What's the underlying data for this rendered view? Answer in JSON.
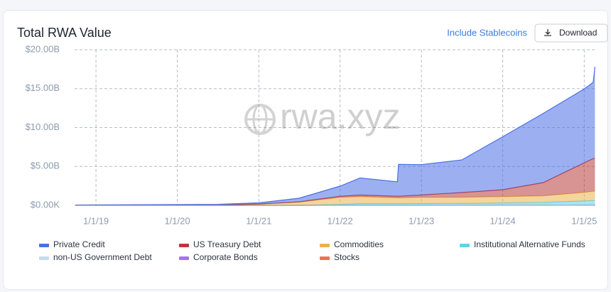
{
  "chart_data": {
    "type": "stacked-area",
    "title": "Total RWA Value",
    "watermark": "rwa.xyz",
    "x": [
      "2018-10-01",
      "2019-07-01",
      "2020-07-01",
      "2021-01-01",
      "2021-07-01",
      "2022-01-01",
      "2022-04-01",
      "2022-09-15",
      "2022-09-20",
      "2023-01-01",
      "2023-07-01",
      "2024-01-01",
      "2024-07-01",
      "2025-01-01",
      "2025-02-10",
      "2025-02-18"
    ],
    "xlim": [
      "2018-09-27",
      "2025-02-20"
    ],
    "xticks": [
      {
        "value": "2019-01-01",
        "label": "1/1/19"
      },
      {
        "value": "2020-01-01",
        "label": "1/1/20"
      },
      {
        "value": "2021-01-01",
        "label": "1/1/21"
      },
      {
        "value": "2022-01-01",
        "label": "1/1/22"
      },
      {
        "value": "2023-01-01",
        "label": "1/1/23"
      },
      {
        "value": "2024-01-01",
        "label": "1/1/24"
      },
      {
        "value": "2025-01-01",
        "label": "1/1/25"
      }
    ],
    "ylim": [
      0,
      20
    ],
    "yticks": [
      {
        "value": 0,
        "label": "$0.00K"
      },
      {
        "value": 5,
        "label": "$5.00B"
      },
      {
        "value": 10,
        "label": "$10.00B"
      },
      {
        "value": 15,
        "label": "$15.00B"
      },
      {
        "value": 20,
        "label": "$20.00B"
      }
    ],
    "grid": true,
    "series": [
      {
        "name": "Stocks",
        "color": "#f0714f",
        "values": [
          0,
          0,
          0,
          0,
          0,
          0.01,
          0.01,
          0.01,
          0.01,
          0.01,
          0.02,
          0.03,
          0.03,
          0.05,
          0.05,
          0.05
        ]
      },
      {
        "name": "Corporate Bonds",
        "color": "#a873f0",
        "values": [
          0,
          0,
          0,
          0,
          0,
          0.01,
          0.01,
          0.01,
          0.01,
          0.01,
          0.01,
          0.02,
          0.02,
          0.03,
          0.03,
          0.03
        ]
      },
      {
        "name": "non-US Government Debt",
        "color": "#c6dcee",
        "values": [
          0,
          0,
          0,
          0,
          0,
          0,
          0,
          0,
          0,
          0.01,
          0.01,
          0.01,
          0.02,
          0.03,
          0.03,
          0.03
        ]
      },
      {
        "name": "Institutional Alternative Funds",
        "color": "#5fd3ea",
        "values": [
          0,
          0,
          0,
          0,
          0.01,
          0.1,
          0.2,
          0.2,
          0.2,
          0.2,
          0.2,
          0.25,
          0.3,
          0.45,
          0.5,
          0.5
        ]
      },
      {
        "name": "Commodities",
        "color": "#e9b24c",
        "values": [
          0.02,
          0.03,
          0.05,
          0.15,
          0.4,
          0.9,
          0.9,
          0.75,
          0.75,
          0.8,
          0.8,
          0.8,
          0.85,
          1.1,
          1.2,
          1.2
        ]
      },
      {
        "name": "US Treasury Debt",
        "color": "#b83a3a",
        "values": [
          0,
          0,
          0,
          0.02,
          0.05,
          0.15,
          0.2,
          0.2,
          0.2,
          0.3,
          0.6,
          0.9,
          1.7,
          3.8,
          4.2,
          4.2
        ]
      },
      {
        "name": "Private Credit",
        "color": "#4a6fe6",
        "values": [
          0.03,
          0.05,
          0.08,
          0.15,
          0.45,
          1.3,
          2.2,
          1.85,
          4.1,
          3.9,
          4.2,
          6.8,
          8.9,
          9.5,
          9.8,
          11.8
        ]
      }
    ],
    "legend_order": [
      6,
      5,
      4,
      3,
      2,
      1,
      0
    ]
  },
  "controls": {
    "toggle": "Include Stablecoins",
    "download": "Download"
  }
}
